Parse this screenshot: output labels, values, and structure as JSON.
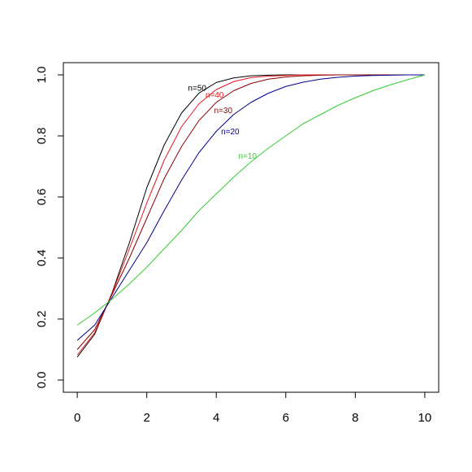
{
  "chart_data": {
    "type": "line",
    "title": "",
    "xlabel": "",
    "ylabel": "",
    "xlim": [
      -0.4,
      10.4
    ],
    "ylim": [
      -0.04,
      1.04
    ],
    "x_ticks": [
      0,
      2,
      4,
      6,
      8,
      10
    ],
    "y_ticks": [
      0.0,
      0.2,
      0.4,
      0.6,
      0.8,
      1.0
    ],
    "x_tick_labels": [
      "0",
      "2",
      "4",
      "6",
      "8",
      "10"
    ],
    "y_tick_labels": [
      "0.0",
      "0.2",
      "0.4",
      "0.6",
      "0.8",
      "1.0"
    ],
    "grid": false,
    "x": [
      0,
      0.5,
      1,
      1.5,
      2,
      2.5,
      3,
      3.5,
      4,
      4.5,
      5,
      5.5,
      6,
      6.5,
      7,
      7.5,
      8,
      8.5,
      9,
      9.5,
      10
    ],
    "series": [
      {
        "name": "n=50",
        "color": "#000000",
        "label_at": [
          3.45,
          0.948
        ],
        "values": [
          0.075,
          0.15,
          0.285,
          0.45,
          0.63,
          0.77,
          0.875,
          0.94,
          0.975,
          0.99,
          0.997,
          0.999,
          1.0,
          1.0,
          1.0,
          1.0,
          1.0,
          1.0,
          1.0,
          1.0,
          1.0
        ]
      },
      {
        "name": "n=40",
        "color": "#e31a1c",
        "label_at": [
          3.95,
          0.925
        ],
        "values": [
          0.082,
          0.155,
          0.283,
          0.43,
          0.58,
          0.72,
          0.83,
          0.905,
          0.952,
          0.978,
          0.991,
          0.996,
          0.998,
          1.0,
          1.0,
          1.0,
          1.0,
          1.0,
          1.0,
          1.0,
          1.0
        ]
      },
      {
        "name": "n=30",
        "color": "#8b0000",
        "label_at": [
          4.2,
          0.875
        ],
        "values": [
          0.1,
          0.165,
          0.28,
          0.4,
          0.53,
          0.66,
          0.765,
          0.85,
          0.91,
          0.948,
          0.972,
          0.986,
          0.993,
          0.997,
          0.999,
          1.0,
          1.0,
          1.0,
          1.0,
          1.0,
          1.0
        ]
      },
      {
        "name": "n=20",
        "color": "#00008b",
        "label_at": [
          4.4,
          0.805
        ],
        "values": [
          0.13,
          0.18,
          0.27,
          0.36,
          0.45,
          0.555,
          0.655,
          0.745,
          0.815,
          0.87,
          0.91,
          0.94,
          0.962,
          0.976,
          0.986,
          0.992,
          0.996,
          0.998,
          0.999,
          1.0,
          1.0
        ]
      },
      {
        "name": "n=10",
        "color": "#33cc33",
        "label_at": [
          4.9,
          0.725
        ],
        "values": [
          0.18,
          0.22,
          0.265,
          0.315,
          0.37,
          0.43,
          0.49,
          0.555,
          0.61,
          0.665,
          0.715,
          0.76,
          0.8,
          0.84,
          0.87,
          0.9,
          0.925,
          0.948,
          0.967,
          0.984,
          1.0
        ]
      }
    ]
  }
}
